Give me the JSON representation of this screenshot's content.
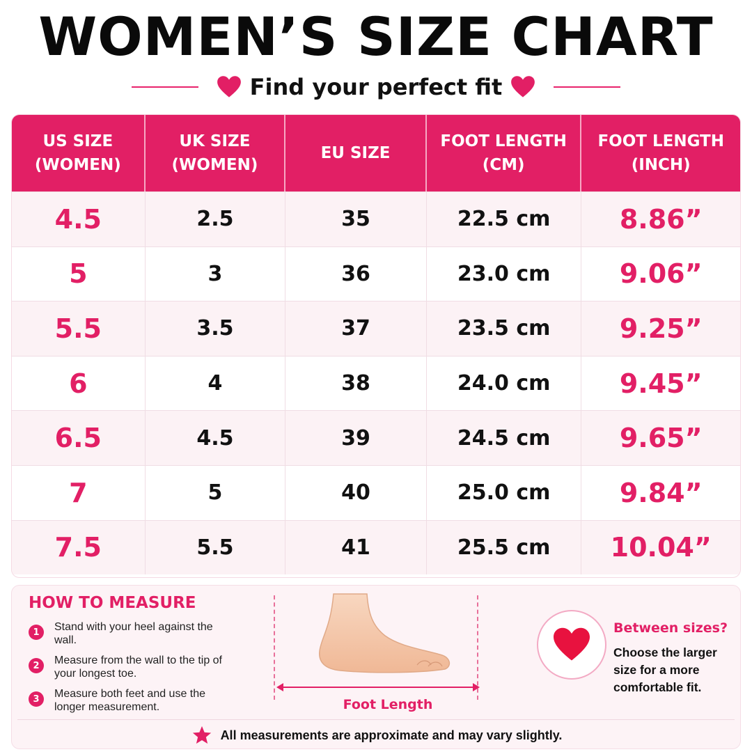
{
  "title": "WOMEN’S SIZE CHART",
  "subtitle": "Find your perfect fit",
  "colors": {
    "accent": "#e21f65",
    "row_alt": "#fcf2f5",
    "panel_bg": "#fdf3f6"
  },
  "table": {
    "headers": [
      "US SIZE\n(WOMEN)",
      "UK SIZE\n(WOMEN)",
      "EU SIZE",
      "FOOT LENGTH\n(CM)",
      "FOOT LENGTH\n(INCH)"
    ],
    "rows": [
      {
        "us": "4.5",
        "uk": "2.5",
        "eu": "35",
        "cm": "22.5 cm",
        "inch": "8.86”"
      },
      {
        "us": "5",
        "uk": "3",
        "eu": "36",
        "cm": "23.0 cm",
        "inch": "9.06”"
      },
      {
        "us": "5.5",
        "uk": "3.5",
        "eu": "37",
        "cm": "23.5 cm",
        "inch": "9.25”"
      },
      {
        "us": "6",
        "uk": "4",
        "eu": "38",
        "cm": "24.0 cm",
        "inch": "9.45”"
      },
      {
        "us": "6.5",
        "uk": "4.5",
        "eu": "39",
        "cm": "24.5 cm",
        "inch": "9.65”"
      },
      {
        "us": "7",
        "uk": "5",
        "eu": "40",
        "cm": "25.0 cm",
        "inch": "9.84”"
      },
      {
        "us": "7.5",
        "uk": "5.5",
        "eu": "41",
        "cm": "25.5 cm",
        "inch": "10.04”"
      }
    ]
  },
  "how_to": {
    "title": "HOW TO MEASURE",
    "steps": [
      {
        "num": "1",
        "text": "Stand with your heel against the wall."
      },
      {
        "num": "2",
        "text": "Measure from the wall to the tip of your longest toe."
      },
      {
        "num": "3",
        "text": "Measure both feet and use the longer measurement."
      }
    ],
    "foot_label": "Foot Length"
  },
  "between": {
    "title": "Between sizes?",
    "text": "Choose the larger size for a more comfortable fit."
  },
  "footnote": "All measurements are approximate and may vary slightly.",
  "icons": {
    "heart": "heart-icon",
    "star": "star-icon",
    "foot": "foot-illustration"
  }
}
